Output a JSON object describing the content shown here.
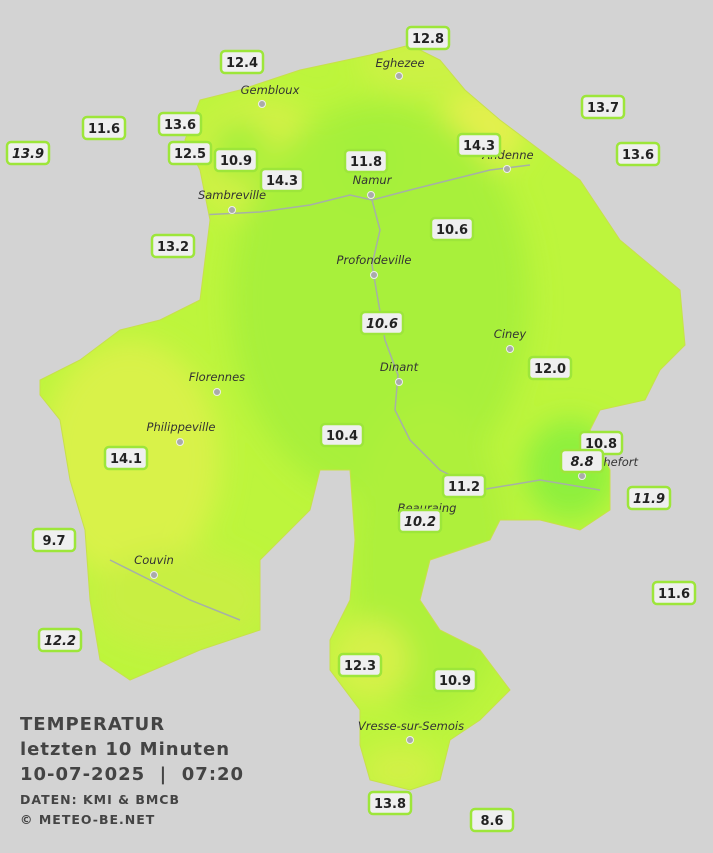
{
  "title": {
    "lines": [
      "TEMPERATUR",
      "letzten 10 Minuten",
      "10-07-2025  |  07:20"
    ],
    "source": "DATEN: KMI & BMCB",
    "copyright": "© METEO-BE.NET"
  },
  "cities": [
    "Eghezee",
    "Gembloux",
    "Namur",
    "Andenne",
    "Sambreville",
    "Profondeville",
    "Ciney",
    "Dinant",
    "Florennes",
    "Philippeville",
    "Rochefort",
    "Beauraing",
    "Couvin",
    "Vresse-sur-Semois"
  ],
  "stations": [
    "12.8",
    "12.4",
    "13.7",
    "11.6",
    "13.6",
    "13.9",
    "12.5",
    "10.9",
    "14.3",
    "11.8",
    "14.3",
    "13.6",
    "13.2",
    "10.6",
    "10.6",
    "12.0",
    "10.4",
    "14.1",
    "10.8",
    "8.8",
    "11.2",
    "11.9",
    "10.2",
    "9.7",
    "11.6",
    "12.2",
    "12.3",
    "10.9",
    "13.8",
    "8.6"
  ]
}
